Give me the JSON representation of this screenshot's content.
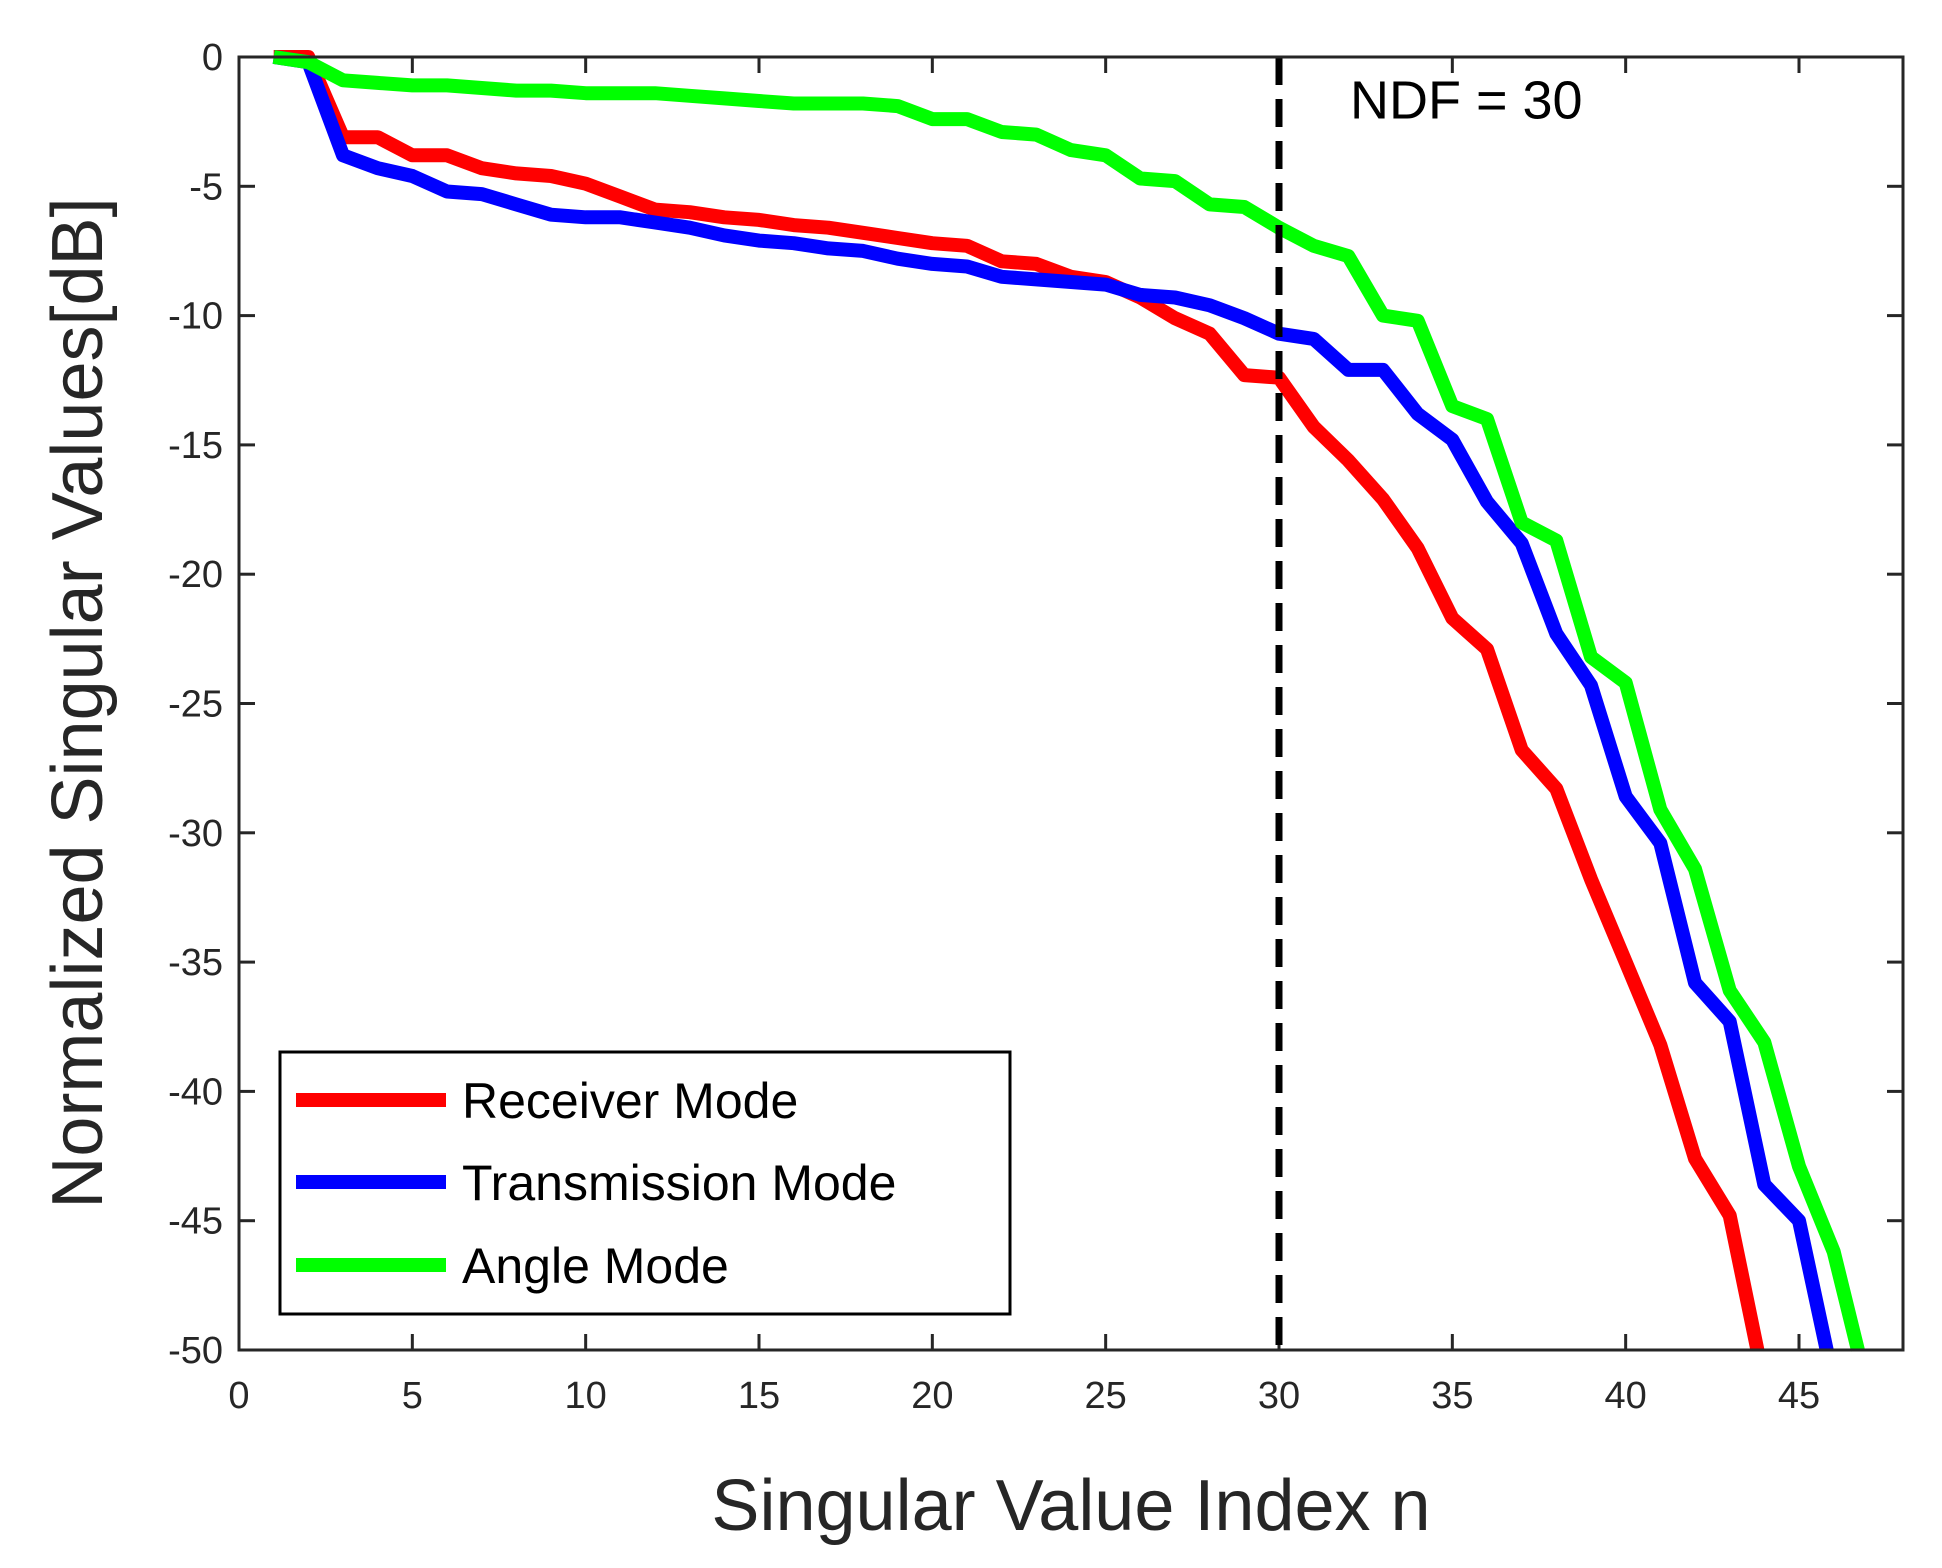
{
  "chart_data": {
    "type": "line",
    "title": "",
    "xlabel": "Singular Value Index n",
    "ylabel": "Normalized Singular Values[dB]",
    "xlim": [
      0,
      48
    ],
    "ylim": [
      -50,
      0
    ],
    "xticks": [
      0,
      5,
      10,
      15,
      20,
      25,
      30,
      35,
      40,
      45
    ],
    "yticks": [
      0,
      -5,
      -10,
      -15,
      -20,
      -25,
      -30,
      -35,
      -40,
      -45,
      -50
    ],
    "xtick_labels": [
      "0",
      "5",
      "10",
      "15",
      "20",
      "25",
      "30",
      "35",
      "40",
      "45"
    ],
    "ytick_labels": [
      "0",
      "-5",
      "-10",
      "-15",
      "-20",
      "-25",
      "-30",
      "-35",
      "-40",
      "-45",
      "-50"
    ],
    "grid": false,
    "legend_position": "bottom-left",
    "annotation": {
      "text": "NDF = 30",
      "x": 30
    },
    "vline": {
      "x": 30,
      "style": "dashed",
      "color": "#000000"
    },
    "series": [
      {
        "name": "Receiver Mode",
        "color": "#ff0000",
        "x": [
          1,
          2,
          3,
          4,
          5,
          6,
          7,
          8,
          9,
          10,
          11,
          12,
          13,
          14,
          15,
          16,
          17,
          18,
          19,
          20,
          21,
          22,
          23,
          24,
          25,
          26,
          27,
          28,
          29,
          30,
          31,
          32,
          33,
          34,
          35,
          36,
          37,
          38,
          39,
          40,
          41,
          42,
          43,
          43.8
        ],
        "values": [
          0,
          0,
          -3.1,
          -3.1,
          -3.8,
          -3.8,
          -4.3,
          -4.5,
          -4.6,
          -4.9,
          -5.4,
          -5.9,
          -6.0,
          -6.2,
          -6.3,
          -6.5,
          -6.6,
          -6.8,
          -7.0,
          -7.2,
          -7.3,
          -7.9,
          -8.0,
          -8.5,
          -8.7,
          -9.3,
          -10.1,
          -10.7,
          -12.3,
          -12.4,
          -14.3,
          -15.6,
          -17.1,
          -19.0,
          -21.7,
          -22.9,
          -26.8,
          -28.3,
          -31.8,
          -35.0,
          -38.2,
          -42.6,
          -44.8,
          -50.0
        ]
      },
      {
        "name": "Transmission Mode",
        "color": "#0000ff",
        "x": [
          1,
          2,
          3,
          4,
          5,
          6,
          7,
          8,
          9,
          10,
          11,
          12,
          13,
          14,
          15,
          16,
          17,
          18,
          19,
          20,
          21,
          22,
          23,
          24,
          25,
          26,
          27,
          28,
          29,
          30,
          31,
          32,
          33,
          34,
          35,
          36,
          37,
          38,
          39,
          40,
          41,
          42,
          43,
          44,
          45,
          45.8
        ],
        "values": [
          0,
          -0.2,
          -3.8,
          -4.3,
          -4.6,
          -5.2,
          -5.3,
          -5.7,
          -6.1,
          -6.2,
          -6.2,
          -6.4,
          -6.6,
          -6.9,
          -7.1,
          -7.2,
          -7.4,
          -7.5,
          -7.8,
          -8.0,
          -8.1,
          -8.5,
          -8.6,
          -8.7,
          -8.8,
          -9.2,
          -9.3,
          -9.6,
          -10.1,
          -10.7,
          -10.9,
          -12.1,
          -12.1,
          -13.8,
          -14.8,
          -17.2,
          -18.8,
          -22.3,
          -24.3,
          -28.6,
          -30.4,
          -35.8,
          -37.3,
          -43.6,
          -45.0,
          -50.0
        ]
      },
      {
        "name": "Angle Mode",
        "color": "#00ff00",
        "x": [
          1,
          2,
          3,
          4,
          5,
          6,
          7,
          8,
          9,
          10,
          11,
          12,
          13,
          14,
          15,
          16,
          17,
          18,
          19,
          20,
          21,
          22,
          23,
          24,
          25,
          26,
          27,
          28,
          29,
          30,
          31,
          32,
          33,
          34,
          35,
          36,
          37,
          38,
          39,
          40,
          41,
          42,
          43,
          44,
          45,
          46,
          46.7
        ],
        "values": [
          0,
          -0.2,
          -0.9,
          -1.0,
          -1.1,
          -1.1,
          -1.2,
          -1.3,
          -1.3,
          -1.4,
          -1.4,
          -1.4,
          -1.5,
          -1.6,
          -1.7,
          -1.8,
          -1.8,
          -1.8,
          -1.9,
          -2.4,
          -2.4,
          -2.9,
          -3.0,
          -3.6,
          -3.8,
          -4.7,
          -4.8,
          -5.7,
          -5.8,
          -6.6,
          -7.3,
          -7.7,
          -10.0,
          -10.2,
          -13.5,
          -14.0,
          -18.0,
          -18.7,
          -23.2,
          -24.2,
          -29.1,
          -31.4,
          -36.1,
          -38.1,
          -42.9,
          -46.2,
          -50.0
        ]
      }
    ]
  }
}
